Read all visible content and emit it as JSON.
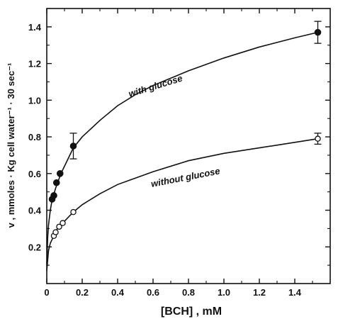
{
  "chart_data": {
    "type": "scatter",
    "xlabel": "[BCH] , mM",
    "ylabel": "v , mmoles · Kg cell water⁻¹ · 30 sec⁻¹",
    "xlim": [
      0,
      1.6
    ],
    "ylim": [
      0,
      1.5
    ],
    "x_ticks": [
      0,
      0.2,
      0.4,
      0.6,
      0.8,
      1.0,
      1.2,
      1.4
    ],
    "x_tick_labels": [
      "0",
      "0.2",
      "0.4",
      "0.6",
      "0.8",
      "1.0",
      "1.2",
      "1.4"
    ],
    "y_ticks": [
      0.2,
      0.4,
      0.6,
      0.8,
      1.0,
      1.2,
      1.4
    ],
    "y_tick_labels": [
      "0.2",
      "0.4",
      "0.6",
      "0.8",
      "1.0",
      "1.2",
      "1.4"
    ],
    "grid": false,
    "series": [
      {
        "name": "with glucose",
        "marker": "filled-circle",
        "points": [
          {
            "x": 0.03,
            "y": 0.46
          },
          {
            "x": 0.04,
            "y": 0.48
          },
          {
            "x": 0.055,
            "y": 0.55
          },
          {
            "x": 0.075,
            "y": 0.6
          },
          {
            "x": 0.15,
            "y": 0.75,
            "err": 0.07
          },
          {
            "x": 1.53,
            "y": 1.37,
            "err": 0.06
          }
        ],
        "fit_curve": [
          [
            0,
            0.1
          ],
          [
            0.005,
            0.25
          ],
          [
            0.01,
            0.32
          ],
          [
            0.02,
            0.4
          ],
          [
            0.03,
            0.455
          ],
          [
            0.05,
            0.52
          ],
          [
            0.08,
            0.6
          ],
          [
            0.1,
            0.64
          ],
          [
            0.15,
            0.74
          ],
          [
            0.2,
            0.8
          ],
          [
            0.3,
            0.89
          ],
          [
            0.4,
            0.97
          ],
          [
            0.5,
            1.03
          ],
          [
            0.6,
            1.08
          ],
          [
            0.8,
            1.16
          ],
          [
            1.0,
            1.23
          ],
          [
            1.2,
            1.29
          ],
          [
            1.4,
            1.34
          ],
          [
            1.53,
            1.37
          ]
        ]
      },
      {
        "name": "without glucose",
        "marker": "open-circle",
        "points": [
          {
            "x": 0.04,
            "y": 0.26
          },
          {
            "x": 0.05,
            "y": 0.28
          },
          {
            "x": 0.07,
            "y": 0.31
          },
          {
            "x": 0.09,
            "y": 0.33
          },
          {
            "x": 0.15,
            "y": 0.39
          },
          {
            "x": 1.53,
            "y": 0.79,
            "err": 0.03
          }
        ],
        "fit_curve": [
          [
            0,
            0.07
          ],
          [
            0.01,
            0.18
          ],
          [
            0.02,
            0.22
          ],
          [
            0.04,
            0.26
          ],
          [
            0.06,
            0.3
          ],
          [
            0.1,
            0.34
          ],
          [
            0.15,
            0.39
          ],
          [
            0.2,
            0.43
          ],
          [
            0.3,
            0.49
          ],
          [
            0.4,
            0.54
          ],
          [
            0.6,
            0.61
          ],
          [
            0.8,
            0.67
          ],
          [
            1.0,
            0.71
          ],
          [
            1.2,
            0.74
          ],
          [
            1.4,
            0.77
          ],
          [
            1.53,
            0.79
          ]
        ]
      }
    ]
  }
}
